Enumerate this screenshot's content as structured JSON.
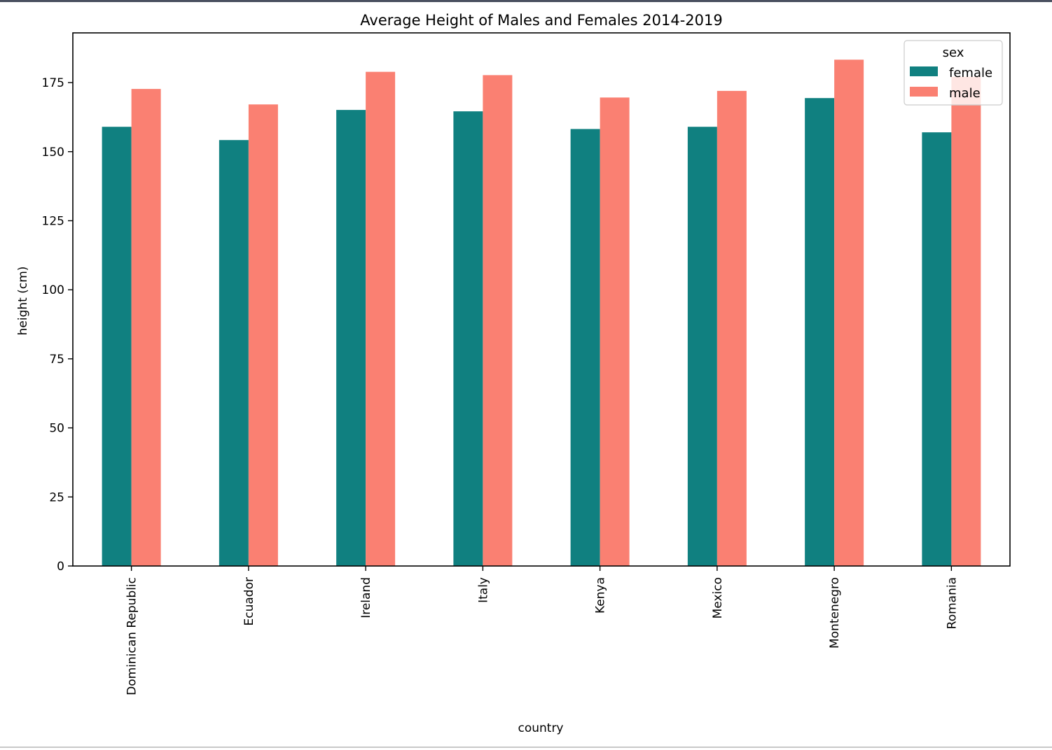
{
  "chart_data": {
    "type": "bar",
    "title": "Average Height of Males and Females 2014-2019",
    "xlabel": "country",
    "ylabel": "height (cm)",
    "ylim": [
      0,
      193
    ],
    "yticks": [
      0,
      25,
      50,
      75,
      100,
      125,
      150,
      175
    ],
    "grid": false,
    "legend": {
      "title": "sex",
      "placement": "top-right"
    },
    "categories": [
      "Dominican Republic",
      "Ecuador",
      "Ireland",
      "Italy",
      "Kenya",
      "Mexico",
      "Montenegro",
      "Romania"
    ],
    "series": [
      {
        "name": "female",
        "color": "#108080",
        "values": [
          159.0,
          154.2,
          165.1,
          164.6,
          158.2,
          159.0,
          169.4,
          157.0
        ]
      },
      {
        "name": "male",
        "color": "#FA8072",
        "values": [
          172.7,
          167.1,
          178.9,
          177.7,
          169.6,
          172.0,
          183.3,
          177.1
        ]
      }
    ]
  }
}
